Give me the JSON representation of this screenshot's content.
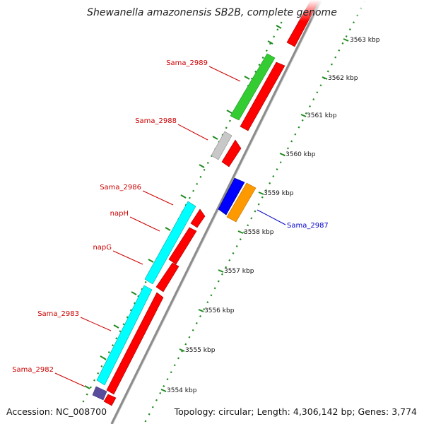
{
  "title": "Shewanella amazonensis SB2B, complete genome",
  "accession": "Accession: NC_008700",
  "topology": "Topology: circular; Length: 4,306,142 bp; Genes: 3,774",
  "scale_ticks": [
    "3563 kbp",
    "3562 kbp",
    "3561 kbp",
    "3560 kbp",
    "3559 kbp",
    "3558 kbp",
    "3557 kbp",
    "3556 kbp",
    "3555 kbp",
    "3554 kbp"
  ],
  "gene_labels": [
    "Sama_2989",
    "Sama_2988",
    "Sama_2986",
    "napH",
    "napG",
    "Sama_2983",
    "Sama_2982",
    "Sama_2987"
  ],
  "colors": {
    "backbone": "#8c8c8c",
    "tick_green": "#1f8a1f",
    "cds_red": "#ff0000",
    "label_red": "#cc0000",
    "label_blue": "#0000cc",
    "sama_2989": "#33cc33",
    "sama_2988": "#c8c8c8",
    "sama_2986": "#00ffff",
    "sama_2983": "#00ffff",
    "sama_2982": "#5a4c9c",
    "sama_2987_blue": "#0000ff",
    "sama_2987_orange": "#ff9900"
  }
}
